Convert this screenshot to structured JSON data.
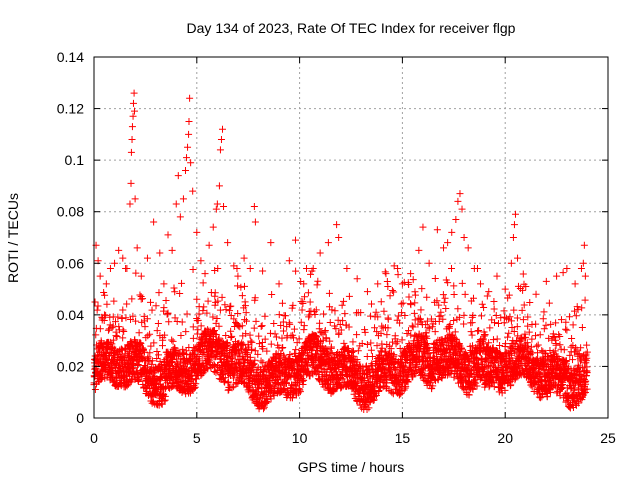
{
  "chart_data": {
    "type": "scatter",
    "title": "Day 134 of 2023, Rate Of TEC Index for receiver flgp",
    "xlabel": "GPS time / hours",
    "ylabel": "ROTI / TECUs",
    "xlim": [
      0,
      25
    ],
    "ylim": [
      0,
      0.14
    ],
    "xticks": [
      0,
      5,
      10,
      15,
      20,
      25
    ],
    "xtick_labels": [
      "0",
      "5",
      "10",
      "15",
      "20",
      "25"
    ],
    "yticks": [
      0,
      0.02,
      0.04,
      0.06,
      0.08,
      0.1,
      0.12,
      0.14
    ],
    "ytick_labels": [
      "0",
      "0.02",
      "0.04",
      "0.06",
      "0.08",
      "0.1",
      "0.12",
      "0.14"
    ],
    "grid": true,
    "marker": "+",
    "series_color": "#ff0000",
    "series": [
      {
        "name": "ROTI",
        "points": [
          [
            0.05,
            0.045
          ],
          [
            0.1,
            0.067
          ],
          [
            0.2,
            0.061
          ],
          [
            0.3,
            0.055
          ],
          [
            0.4,
            0.038
          ],
          [
            0.6,
            0.052
          ],
          [
            0.8,
            0.058
          ],
          [
            1.0,
            0.06
          ],
          [
            1.2,
            0.065
          ],
          [
            1.4,
            0.062
          ],
          [
            1.6,
            0.058
          ],
          [
            1.75,
            0.083
          ],
          [
            1.8,
            0.091
          ],
          [
            1.82,
            0.103
          ],
          [
            1.85,
            0.108
          ],
          [
            1.87,
            0.113
          ],
          [
            1.9,
            0.117
          ],
          [
            1.92,
            0.122
          ],
          [
            1.95,
            0.126
          ],
          [
            1.97,
            0.119
          ],
          [
            2.0,
            0.085
          ],
          [
            2.1,
            0.066
          ],
          [
            2.3,
            0.055
          ],
          [
            2.6,
            0.062
          ],
          [
            2.9,
            0.076
          ],
          [
            3.2,
            0.064
          ],
          [
            3.4,
            0.052
          ],
          [
            3.6,
            0.071
          ],
          [
            3.8,
            0.065
          ],
          [
            4.0,
            0.083
          ],
          [
            4.1,
            0.094
          ],
          [
            4.2,
            0.078
          ],
          [
            4.35,
            0.085
          ],
          [
            4.45,
            0.096
          ],
          [
            4.5,
            0.101
          ],
          [
            4.55,
            0.105
          ],
          [
            4.6,
            0.11
          ],
          [
            4.62,
            0.115
          ],
          [
            4.65,
            0.124
          ],
          [
            4.7,
            0.099
          ],
          [
            4.8,
            0.088
          ],
          [
            5.0,
            0.072
          ],
          [
            5.2,
            0.061
          ],
          [
            5.4,
            0.056
          ],
          [
            5.6,
            0.067
          ],
          [
            5.8,
            0.074
          ],
          [
            5.95,
            0.081
          ],
          [
            6.0,
            0.083
          ],
          [
            6.1,
            0.09
          ],
          [
            6.15,
            0.104
          ],
          [
            6.2,
            0.108
          ],
          [
            6.25,
            0.112
          ],
          [
            6.3,
            0.082
          ],
          [
            6.5,
            0.068
          ],
          [
            6.8,
            0.059
          ],
          [
            7.0,
            0.055
          ],
          [
            7.3,
            0.062
          ],
          [
            7.6,
            0.058
          ],
          [
            7.8,
            0.082
          ],
          [
            7.85,
            0.076
          ],
          [
            8.2,
            0.057
          ],
          [
            8.6,
            0.068
          ],
          [
            9.0,
            0.052
          ],
          [
            9.5,
            0.061
          ],
          [
            9.8,
            0.069
          ],
          [
            10.2,
            0.052
          ],
          [
            10.6,
            0.057
          ],
          [
            11.0,
            0.064
          ],
          [
            11.4,
            0.068
          ],
          [
            11.8,
            0.075
          ],
          [
            11.9,
            0.07
          ],
          [
            12.3,
            0.058
          ],
          [
            12.8,
            0.054
          ],
          [
            13.3,
            0.049
          ],
          [
            13.8,
            0.052
          ],
          [
            14.2,
            0.056
          ],
          [
            14.6,
            0.059
          ],
          [
            15.0,
            0.052
          ],
          [
            15.4,
            0.056
          ],
          [
            15.8,
            0.065
          ],
          [
            16.0,
            0.074
          ],
          [
            16.3,
            0.06
          ],
          [
            16.7,
            0.073
          ],
          [
            17.0,
            0.066
          ],
          [
            17.2,
            0.068
          ],
          [
            17.4,
            0.072
          ],
          [
            17.6,
            0.077
          ],
          [
            17.7,
            0.084
          ],
          [
            17.8,
            0.087
          ],
          [
            17.9,
            0.081
          ],
          [
            18.0,
            0.07
          ],
          [
            18.2,
            0.066
          ],
          [
            18.5,
            0.058
          ],
          [
            18.8,
            0.052
          ],
          [
            19.2,
            0.049
          ],
          [
            19.6,
            0.055
          ],
          [
            20.0,
            0.05
          ],
          [
            20.3,
            0.06
          ],
          [
            20.4,
            0.07
          ],
          [
            20.45,
            0.075
          ],
          [
            20.5,
            0.079
          ],
          [
            20.6,
            0.062
          ],
          [
            21.0,
            0.051
          ],
          [
            21.5,
            0.048
          ],
          [
            22.0,
            0.053
          ],
          [
            22.5,
            0.055
          ],
          [
            23.0,
            0.058
          ],
          [
            23.4,
            0.052
          ],
          [
            23.8,
            0.06
          ],
          [
            23.85,
            0.067
          ],
          [
            23.9,
            0.055
          ]
        ]
      }
    ]
  }
}
